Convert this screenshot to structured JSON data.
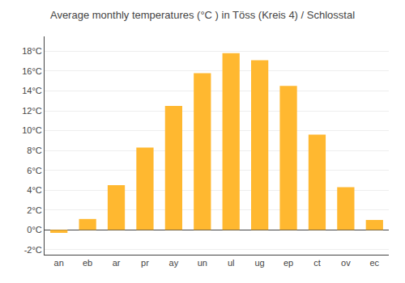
{
  "chart_data": {
    "type": "bar",
    "title": "Average monthly temperatures (°C ) in Töss (Kreis 4) / Schlosstal",
    "categories": [
      "an",
      "eb",
      "ar",
      "pr",
      "ay",
      "un",
      "ul",
      "ug",
      "ep",
      "ct",
      "ov",
      "ec"
    ],
    "values": [
      -0.3,
      1.1,
      4.5,
      8.3,
      12.5,
      15.8,
      17.8,
      17.1,
      14.5,
      9.6,
      4.3,
      1.0
    ],
    "color": "#FFB830",
    "ylim": [
      -2.5,
      19.5
    ],
    "yticks": [
      {
        "value": -2,
        "label": "-2°C"
      },
      {
        "value": 0,
        "label": "0°C"
      },
      {
        "value": 2,
        "label": "2°C"
      },
      {
        "value": 4,
        "label": "4°C"
      },
      {
        "value": 6,
        "label": "6°C"
      },
      {
        "value": 8,
        "label": "8°C"
      },
      {
        "value": 10,
        "label": "10°C"
      },
      {
        "value": 12,
        "label": "12°C"
      },
      {
        "value": 14,
        "label": "14°C"
      },
      {
        "value": 16,
        "label": "16°C"
      },
      {
        "value": 18,
        "label": "18°C"
      }
    ],
    "grid": true
  }
}
